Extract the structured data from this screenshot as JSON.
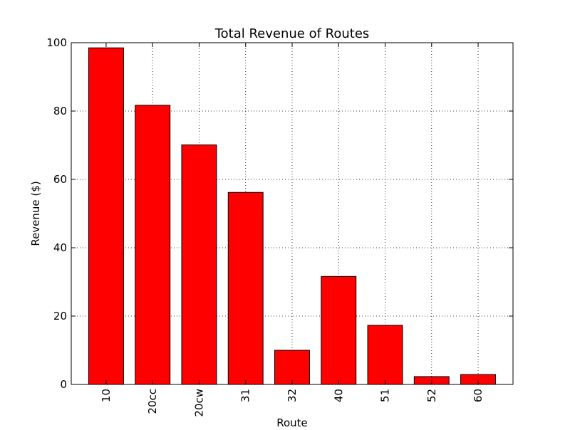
{
  "chart_data": {
    "type": "bar",
    "title": "Total Revenue of Routes",
    "xlabel": "Route",
    "ylabel": "Revenue ($)",
    "categories": [
      "10",
      "20cc",
      "20cw",
      "31",
      "32",
      "40",
      "51",
      "52",
      "60"
    ],
    "values": [
      98.5,
      81.7,
      70.1,
      56.2,
      10.0,
      31.6,
      17.3,
      2.3,
      2.9
    ],
    "ylim": [
      0,
      100
    ],
    "yticks": [
      "0",
      "20",
      "40",
      "60",
      "80",
      "100"
    ],
    "grid": true,
    "legend": "none",
    "bar_color": "#ff0000",
    "edge_color": "#000000"
  }
}
